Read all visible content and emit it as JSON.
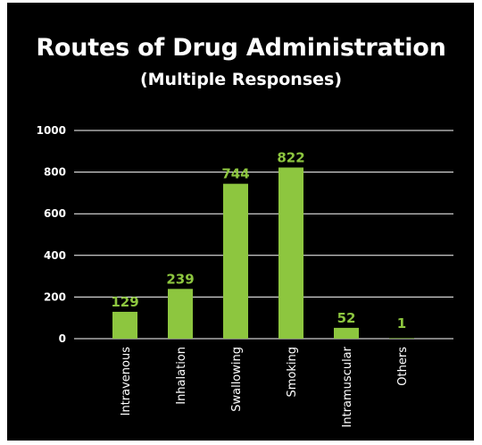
{
  "chart_data": {
    "type": "bar",
    "title": "Routes of Drug Administration",
    "subtitle": "(Multiple Responses)",
    "categories": [
      "Intravenous",
      "Inhalation",
      "Swallowing",
      "Smoking",
      "Intramuscular",
      "Others"
    ],
    "values": [
      129,
      239,
      744,
      822,
      52,
      1
    ],
    "data_labels": [
      "129",
      "239",
      "744",
      "822",
      "52",
      "1"
    ],
    "y_ticks": [
      "0",
      "200",
      "400",
      "600",
      "800",
      "1000"
    ],
    "y_tick_values": [
      0,
      200,
      400,
      600,
      800,
      1000
    ],
    "ylim": [
      0,
      1000
    ],
    "grid": true,
    "legend": "none",
    "colors": {
      "background": "#000000",
      "bar": "#8dc63f",
      "data_label": "#8dc63f",
      "text": "#ffffff",
      "grid": "#ffffff"
    }
  }
}
